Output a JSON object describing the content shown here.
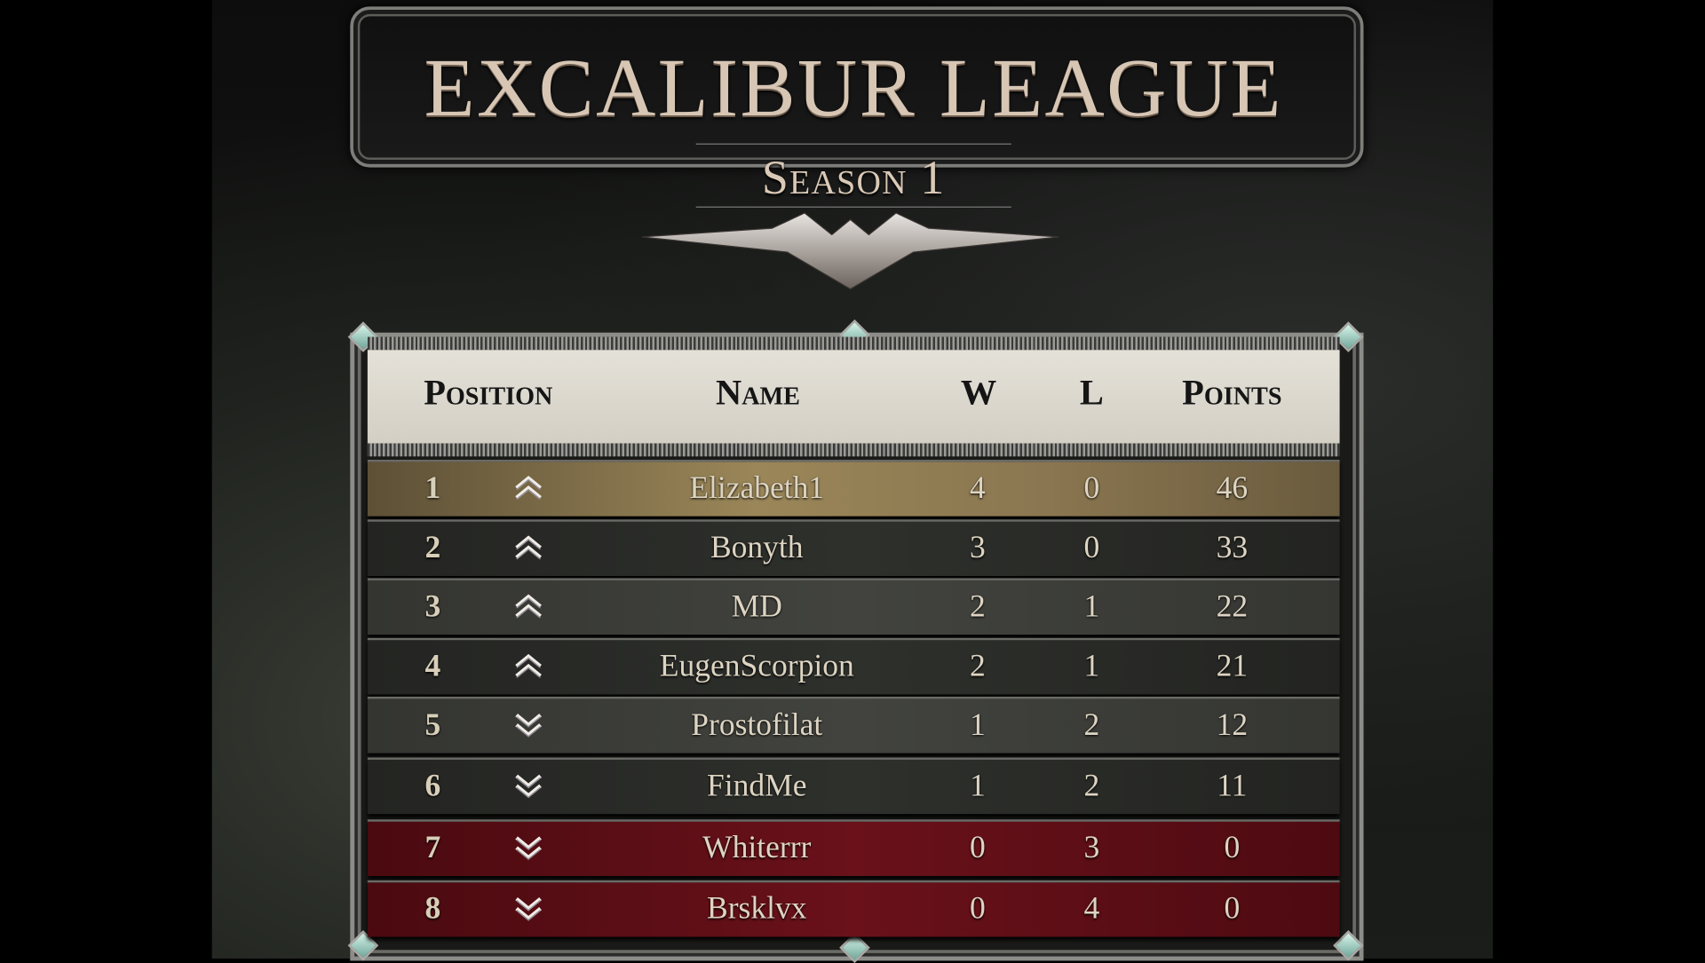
{
  "header": {
    "title": "EXCALIBUR LEAGUE",
    "subtitle": "Season 1"
  },
  "table": {
    "columns": [
      "Position",
      "Name",
      "W",
      "L",
      "Points"
    ],
    "rows": [
      {
        "position": "1",
        "trend": "up",
        "name": "Elizabeth1",
        "w": "4",
        "l": "0",
        "points": "46",
        "style": "gold"
      },
      {
        "position": "2",
        "trend": "up",
        "name": "Bonyth",
        "w": "3",
        "l": "0",
        "points": "33",
        "style": "dark"
      },
      {
        "position": "3",
        "trend": "up",
        "name": "MD",
        "w": "2",
        "l": "1",
        "points": "22",
        "style": "gray"
      },
      {
        "position": "4",
        "trend": "up",
        "name": "EugenScorpion",
        "w": "2",
        "l": "1",
        "points": "21",
        "style": "dark"
      },
      {
        "position": "5",
        "trend": "down",
        "name": "Prostofilat",
        "w": "1",
        "l": "2",
        "points": "12",
        "style": "gray"
      },
      {
        "position": "6",
        "trend": "down",
        "name": "FindMe",
        "w": "1",
        "l": "2",
        "points": "11",
        "style": "dark"
      },
      {
        "position": "7",
        "trend": "down",
        "name": "Whiterrr",
        "w": "0",
        "l": "3",
        "points": "0",
        "style": "red"
      },
      {
        "position": "8",
        "trend": "down",
        "name": "Brsklvx",
        "w": "0",
        "l": "4",
        "points": "0",
        "style": "red"
      }
    ]
  },
  "colors": {
    "gold": "#8a7650",
    "dark": "#2a2b28",
    "gray": "#3b3c37",
    "red": "#5e0d14",
    "header": "#dedad1"
  },
  "icons": {
    "up": "double-chevron-up-icon",
    "down": "double-chevron-down-icon"
  }
}
